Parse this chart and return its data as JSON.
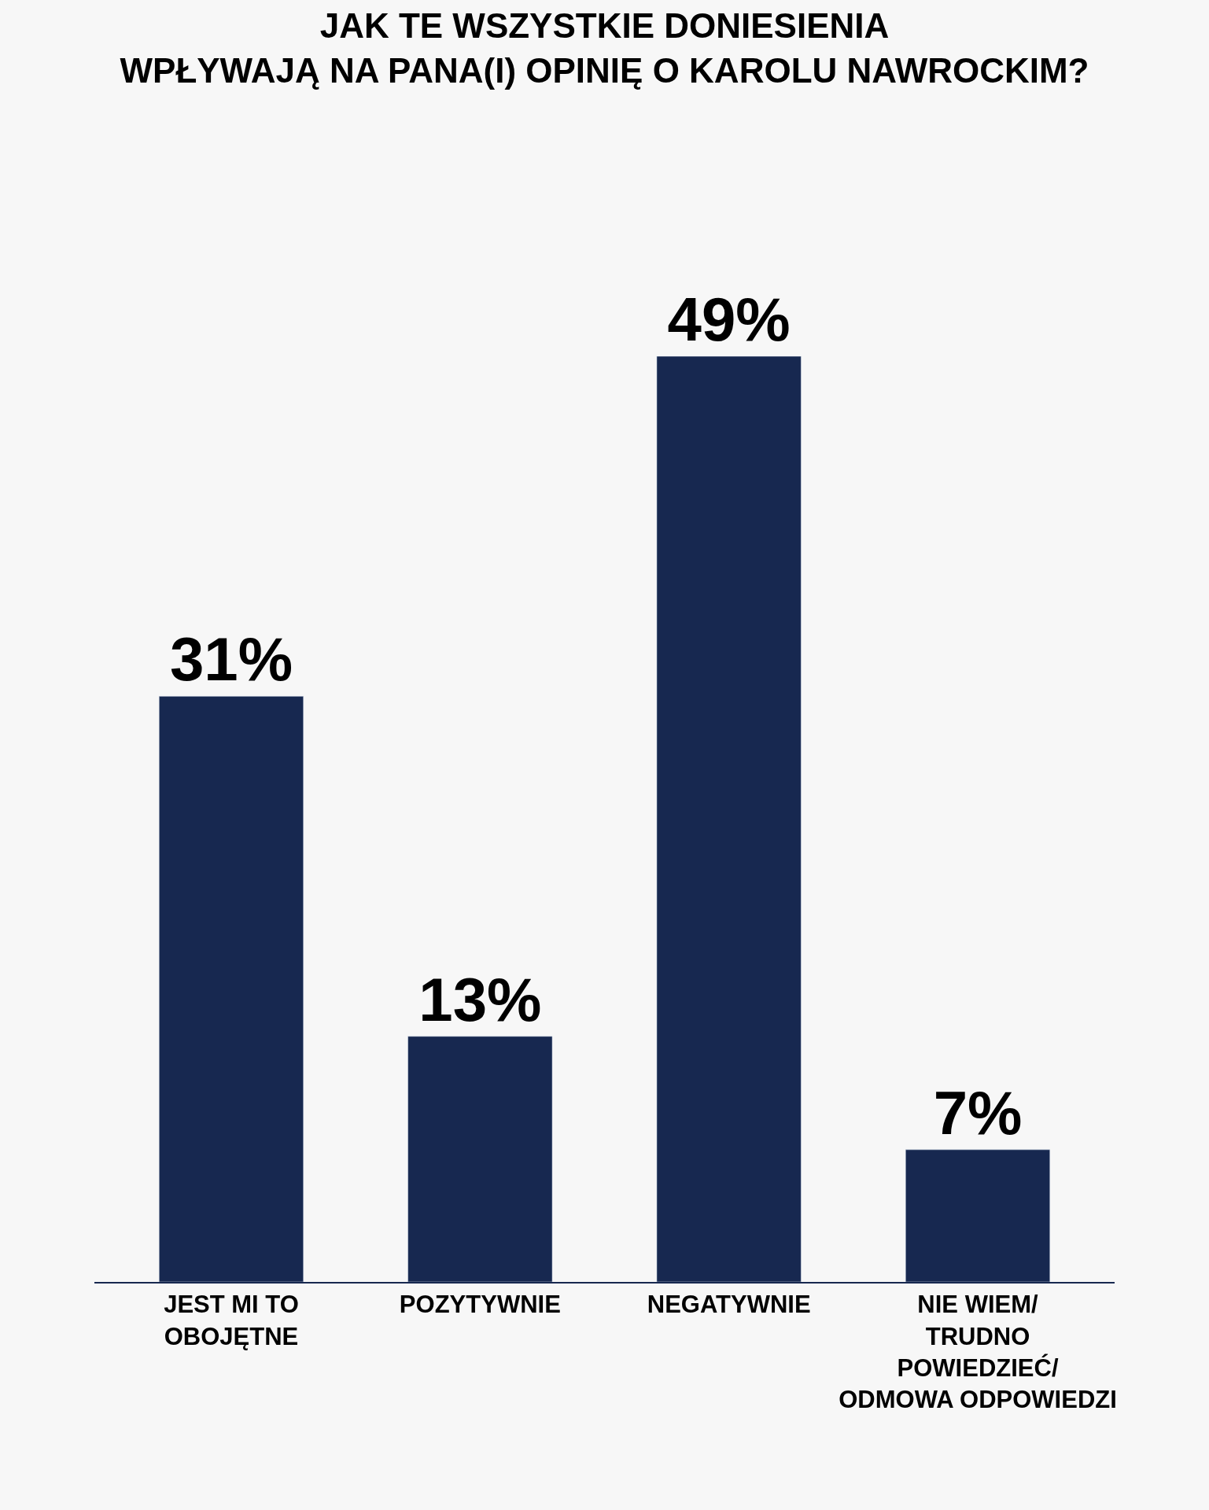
{
  "chart_data": {
    "type": "bar",
    "title": "JAK TE WSZYSTKIE DONIESIENIA\nWPŁYWAJĄ NA PANA(I) OPINIĘ O KAROLU NAWROCKIM?",
    "categories": [
      "JEST MI TO\nOBOJĘTNE",
      "POZYTYWNIE",
      "NEGATYWNIE",
      "NIE WIEM/\nTRUDNO\nPOWIEDZIEĆ/\nODMOWA ODPOWIEDZI"
    ],
    "values": [
      31,
      13,
      49,
      7
    ],
    "value_labels": [
      "31%",
      "13%",
      "49%",
      "7%"
    ],
    "color": "#172850",
    "grid": false,
    "legend": false
  }
}
